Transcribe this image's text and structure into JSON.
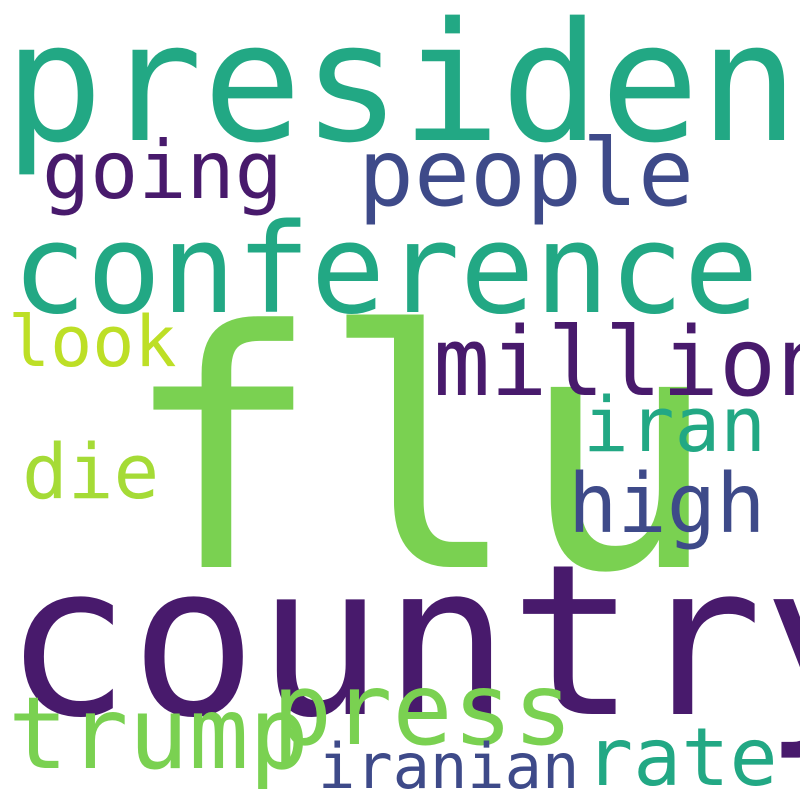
{
  "words": [
    {
      "text": "flu",
      "color": "#7ad151"
    },
    {
      "text": "country",
      "color": "#481a6c"
    },
    {
      "text": "president",
      "color": "#22a884"
    },
    {
      "text": "conference",
      "color": "#22a884"
    },
    {
      "text": "people",
      "color": "#3e4a89"
    },
    {
      "text": "going",
      "color": "#481a6c"
    },
    {
      "text": "million",
      "color": "#481a6c"
    },
    {
      "text": "look",
      "color": "#bddf26"
    },
    {
      "text": "iran",
      "color": "#22a884"
    },
    {
      "text": "die",
      "color": "#a5db36"
    },
    {
      "text": "high",
      "color": "#3e4a89"
    },
    {
      "text": "trump",
      "color": "#7ad151"
    },
    {
      "text": "press",
      "color": "#7ad151"
    },
    {
      "text": "iranian",
      "color": "#3e4a89"
    },
    {
      "text": "rate",
      "color": "#22a884"
    }
  ]
}
